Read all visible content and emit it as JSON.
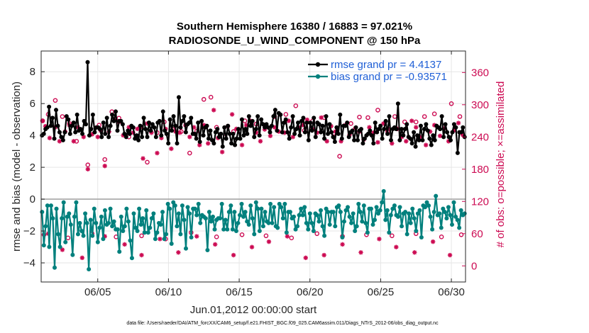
{
  "chart_data": {
    "type": "line",
    "title": "Southern Hemisphere 16380 / 16883 = 97.021%",
    "subtitle": "RADIOSONDE_U_WIND_COMPONENT @ 150 hPa",
    "xlabel": "Jun.01,2012 00:00:00 start",
    "ylabel": "rmse and bias (model - observation)",
    "ylabel_right": "# of obs: o=possible; ×=assimilated",
    "footnote": "data file: /Users/raeder/DAI/ATM_forcXX/CAM6_setup/f.e21.FHIST_BGC.f09_025.CAM6assim.011/Diags_NTrS_2012-06/obs_diag_output.nc",
    "xlim": [
      1,
      31
    ],
    "ylim": [
      -5.2,
      9.3
    ],
    "ylim_right": [
      -30,
      400
    ],
    "yticks": [
      -4,
      -2,
      0,
      2,
      4,
      6,
      8
    ],
    "yticks_right": [
      0,
      60,
      120,
      180,
      240,
      300,
      360
    ],
    "x_tick_values": [
      5,
      10,
      15,
      20,
      25,
      30
    ],
    "x_tick_labels": [
      "06/05",
      "06/10",
      "06/15",
      "06/20",
      "06/25",
      "06/30"
    ],
    "grid": true,
    "legend_position": "top-right",
    "colors": {
      "rmse": "#000000",
      "bias": "#00807d",
      "obs": "#cc0a52",
      "legend_text": "#1f5fd6",
      "zero_line": "#a6a6a6"
    },
    "series": [
      {
        "name": "rmse grand pr = 4.4137",
        "key": "rmse",
        "values": [
          4.0,
          4.1,
          4.4,
          4.5,
          5.8,
          4.6,
          5.1,
          3.8,
          5.6,
          4.6,
          4.2,
          3.9,
          3.7,
          4.2,
          5.2,
          5.0,
          4.1,
          4.6,
          4.8,
          4.2,
          5.3,
          4.3,
          4.4,
          4.1,
          4.9,
          4.7,
          8.6,
          4.0,
          4.4,
          5.3,
          4.2,
          4.5,
          4.5,
          4.4,
          3.9,
          4.8,
          4.1,
          5.1,
          3.9,
          4.6,
          5.3,
          4.9,
          5.5,
          4.3,
          4.9,
          4.9,
          4.7,
          4.1,
          3.9,
          4.3,
          4.1,
          4.6,
          4.5,
          3.8,
          4.0,
          3.7,
          4.6,
          3.9,
          5.1,
          4.4,
          3.9,
          4.8,
          4.3,
          4.7,
          4.5,
          3.9,
          4.8,
          4.9,
          4.0,
          5.5,
          4.3,
          4.1,
          3.5,
          5.0,
          4.3,
          5.2,
          4.6,
          3.5,
          6.4,
          4.5,
          4.9,
          5.2,
          4.2,
          4.7,
          4.8,
          5.1,
          4.1,
          4.1,
          3.8,
          4.8,
          3.6,
          4.9,
          4.0,
          4.5,
          4.6,
          3.8,
          4.3,
          3.7,
          3.5,
          4.2,
          4.4,
          3.9,
          4.1,
          3.3,
          4.5,
          3.8,
          4.6,
          4.1,
          3.5,
          4.1,
          3.4,
          3.8,
          4.4,
          3.8,
          5.0,
          4.0,
          4.4,
          4.1,
          5.2,
          4.6,
          4.9,
          3.9,
          4.4,
          5.2,
          4.0,
          5.0,
          4.7,
          4.5,
          4.7,
          4.5,
          4.2,
          4.6,
          5.2,
          5.6,
          4.3,
          5.4,
          5.3,
          4.2,
          4.8,
          5.0,
          4.2,
          3.8,
          4.5,
          5.2,
          4.1,
          4.4,
          4.8,
          4.0,
          4.9,
          5.1,
          4.2,
          4.8,
          3.7,
          4.8,
          4.3,
          5.1,
          3.9,
          4.8,
          4.7,
          4.2,
          4.6,
          3.8,
          5.2,
          4.1,
          4.7,
          4.2,
          3.9,
          3.6,
          4.5,
          4.1,
          5.3,
          3.8,
          4.6,
          4.6,
          4.8,
          3.9,
          4.2,
          4.3,
          3.7,
          4.5,
          3.7,
          4.3,
          4.4,
          3.5,
          3.8,
          4.0,
          4.1,
          4.3,
          4.0,
          3.5,
          4.8,
          4.2,
          4.4,
          4.6,
          3.8,
          4.4,
          4.9,
          4.1,
          5.2,
          3.7,
          4.4,
          4.5,
          4.4,
          6.0,
          3.7,
          4.4,
          4.0,
          4.4,
          4.7,
          3.9,
          3.8,
          3.5,
          4.2,
          3.3,
          4.0,
          3.7,
          4.6,
          3.7,
          4.4,
          4.7,
          4.3,
          3.8,
          3.4,
          4.0,
          3.7,
          4.6,
          4.5,
          4.4,
          5.2,
          3.9,
          4.7,
          4.2,
          3.9,
          3.7,
          4.2,
          4.7,
          4.5,
          2.9,
          4.2,
          4.2,
          4.5,
          3.9
        ]
      },
      {
        "name": "bias grand pr = -0.93571",
        "key": "bias",
        "values": [
          -0.8,
          -2.9,
          -1.7,
          -0.4,
          -3.0,
          -0.4,
          -1.2,
          -4.3,
          -0.6,
          -2.2,
          -3.0,
          -1.2,
          -0.2,
          -2.7,
          -1.1,
          -0.9,
          -1.6,
          -3.5,
          -1.1,
          -0.2,
          -2.2,
          -1.5,
          -2.0,
          -2.3,
          -0.9,
          -1.5,
          -4.4,
          -1.3,
          -2.3,
          -0.6,
          -1.5,
          -2.7,
          -1.8,
          -1.1,
          -2.5,
          -0.7,
          -1.6,
          -1.5,
          -0.6,
          -1.7,
          -1.4,
          -1.9,
          -1.9,
          -3.3,
          -1.1,
          -2.0,
          -1.7,
          -0.6,
          -1.4,
          -2.6,
          -3.7,
          -0.9,
          -1.8,
          -2.0,
          -0.6,
          -1.6,
          -1.2,
          -2.1,
          -0.7,
          -2.1,
          -1.8,
          -1.2,
          -0.9,
          -2.5,
          -2.1,
          -1.5,
          -1.6,
          -0.8,
          -2.5,
          -2.2,
          -0.3,
          -0.6,
          -2.8,
          -0.2,
          -0.4,
          -1.7,
          -0.9,
          -2.2,
          -0.4,
          -1.3,
          -3.1,
          -0.5,
          -0.9,
          -2.4,
          -0.6,
          -0.6,
          -1.0,
          -0.3,
          -1.5,
          -1.0,
          -1.1,
          -1.2,
          -3.2,
          -0.8,
          -1.4,
          -1.1,
          -1.9,
          -1.3,
          -1.2,
          -1.2,
          -0.3,
          -1.9,
          -1.3,
          -1.9,
          -0.8,
          -0.4,
          -1.9,
          -0.8,
          -2.0,
          -1.5,
          -1.0,
          -0.3,
          -1.1,
          -0.8,
          -1.4,
          -1.6,
          -0.4,
          -1.2,
          -2.2,
          -0.2,
          -0.6,
          -2.0,
          -0.6,
          -1.7,
          -0.8,
          -1.4,
          -1.5,
          -0.3,
          -1.5,
          -0.5,
          -1.7,
          -1.8,
          -0.3,
          -0.5,
          -1.2,
          -0.3,
          -2.1,
          -0.8,
          -0.8,
          -1.2,
          -1.1,
          -1.9,
          -1.7,
          -1.0,
          -0.6,
          -1.0,
          -0.5,
          -1.5,
          -1.9,
          -0.9,
          -1.5,
          -2.0,
          -0.9,
          -1.0,
          -1.4,
          -0.7,
          -1.7,
          -2.3,
          -0.6,
          -0.8,
          -1.6,
          -0.8,
          -0.8,
          -1.7,
          -0.5,
          -0.4,
          -0.8,
          -2.4,
          -1.4,
          -0.7,
          -0.5,
          -1.1,
          -1.5,
          -0.9,
          -2.0,
          -1.7,
          -0.3,
          -0.8,
          -1.4,
          -0.4,
          -1.5,
          -2.1,
          -0.6,
          -0.6,
          -1.6,
          -1.3,
          -0.5,
          -0.9,
          -0.7,
          -0.2,
          0.5,
          -1.3,
          -0.7,
          -2.1,
          -1.0,
          -0.6,
          -0.4,
          -1.0,
          -1.1,
          -0.5,
          -1.7,
          -0.9,
          -0.8,
          -2.2,
          -0.9,
          -1.5,
          -0.6,
          -1.2,
          -2.0,
          -0.9,
          -0.7,
          -2.4,
          -0.4,
          -0.5,
          -0.2,
          -0.4,
          -1.1,
          -1.9,
          -0.8,
          0.2,
          -1.0,
          -0.9,
          -1.8,
          -0.6,
          -0.8,
          -1.2,
          -0.5,
          -1.0,
          -1.6,
          -0.2,
          -1.1,
          -1.3,
          -1.8,
          -0.7,
          -1.0,
          -0.9
        ]
      },
      {
        "name": "obs possible (o)",
        "key": "possible",
        "axis": "right",
        "t": [
          1.1,
          1.5,
          2.0,
          2.5,
          3.0,
          3.5,
          4.3,
          5.1,
          5.5,
          6.0,
          6.5,
          7.2,
          8.0,
          8.5,
          9.2,
          9.7,
          10.3,
          10.9,
          11.5,
          12.0,
          12.5,
          13.0,
          13.4,
          14.0,
          14.6,
          15.4,
          16.2,
          16.8,
          17.5,
          18.3,
          19.0,
          19.6,
          20.2,
          21.0,
          21.7,
          22.1,
          22.9,
          23.5,
          24.1,
          24.8,
          25.5,
          26.0,
          26.7,
          27.5,
          28.1,
          28.8,
          29.5,
          30.0,
          30.6
        ],
        "values": [
          270,
          282,
          308,
          278,
          265,
          232,
          188,
          262,
          198,
          287,
          275,
          240,
          258,
          193,
          248,
          268,
          254,
          250,
          210,
          251,
          310,
          314,
          258,
          240,
          250,
          270,
          264,
          262,
          278,
          282,
          298,
          252,
          270,
          276,
          247,
          204,
          265,
          277,
          276,
          290,
          250,
          278,
          268,
          268,
          278,
          283,
          260,
          302,
          278
        ]
      },
      {
        "name": "obs assimilated (×)",
        "key": "assimilated",
        "axis": "right",
        "t": [
          1.1,
          1.3,
          1.6,
          2.0,
          2.3,
          2.7,
          3.0,
          3.3,
          3.6,
          4.0,
          4.3,
          4.6,
          5.0,
          5.2,
          5.5,
          5.8,
          6.2,
          6.5,
          6.8,
          7.2,
          7.5,
          7.8,
          8.2,
          8.5,
          8.8,
          9.2,
          9.5,
          9.8,
          10.2,
          10.5,
          10.8,
          11.2,
          11.5,
          11.8,
          12.2,
          12.5,
          12.8,
          13.2,
          13.5,
          13.8,
          14.2,
          14.5,
          14.8,
          15.2,
          15.5,
          15.8,
          16.2,
          16.5,
          16.8,
          17.2,
          17.5,
          17.8,
          18.2,
          18.5,
          18.8,
          19.2,
          19.5,
          19.8,
          20.2,
          20.5,
          20.8,
          21.2,
          21.5,
          21.8,
          22.2,
          22.5,
          22.8,
          23.2,
          23.5,
          23.8,
          24.2,
          24.5,
          24.8,
          25.2,
          25.5,
          25.8,
          26.2,
          26.5,
          26.8,
          27.2,
          27.5,
          27.8,
          28.2,
          28.5,
          28.8,
          29.2,
          29.5,
          29.8,
          30.2,
          30.5,
          30.8,
          1.5,
          2.5,
          3.9,
          5.5,
          6.9,
          8.1,
          9.4,
          10.7,
          12.0,
          13.3,
          14.6,
          15.9,
          17.1,
          18.4,
          19.7,
          21.0,
          22.3,
          23.6,
          24.9,
          26.1,
          27.4,
          28.7,
          29.9
        ],
        "values": [
          270,
          260,
          238,
          258,
          232,
          250,
          262,
          232,
          258,
          240,
          180,
          245,
          240,
          252,
          186,
          250,
          272,
          268,
          243,
          258,
          248,
          255,
          200,
          265,
          248,
          210,
          238,
          255,
          218,
          250,
          248,
          262,
          240,
          258,
          225,
          262,
          228,
          290,
          238,
          212,
          260,
          282,
          255,
          225,
          262,
          270,
          248,
          232,
          254,
          242,
          258,
          250,
          248,
          270,
          240,
          258,
          262,
          272,
          255,
          248,
          276,
          232,
          260,
          250,
          232,
          262,
          244,
          256,
          250,
          235,
          258,
          248,
          230,
          265,
          255,
          228,
          255,
          240,
          232,
          270,
          258,
          240,
          225,
          250,
          262,
          242,
          256,
          232,
          252,
          266,
          244,
          60,
          30,
          15,
          55,
          40,
          20,
          50,
          25,
          55,
          40,
          20,
          35,
          45,
          55,
          15,
          20,
          40,
          25,
          50,
          35,
          25,
          45,
          20
        ]
      },
      {
        "name": "obs possible (o) bottom",
        "key": "possible_low",
        "axis": "right",
        "t": [
          1.2,
          2.9,
          4.6,
          6.3,
          8.1,
          9.8,
          11.6,
          13.4,
          15.2,
          16.9,
          18.7,
          20.5,
          22.3,
          24.0,
          25.8,
          27.5,
          29.3,
          30.7
        ],
        "values": [
          58,
          52,
          60,
          54,
          56,
          50,
          62,
          54,
          58,
          56,
          52,
          60,
          55,
          58,
          56,
          60,
          54,
          58
        ]
      }
    ],
    "legend": [
      {
        "label": "rmse grand pr = 4.4137",
        "key": "rmse"
      },
      {
        "label": "bias grand pr = -0.93571",
        "key": "bias"
      }
    ]
  }
}
